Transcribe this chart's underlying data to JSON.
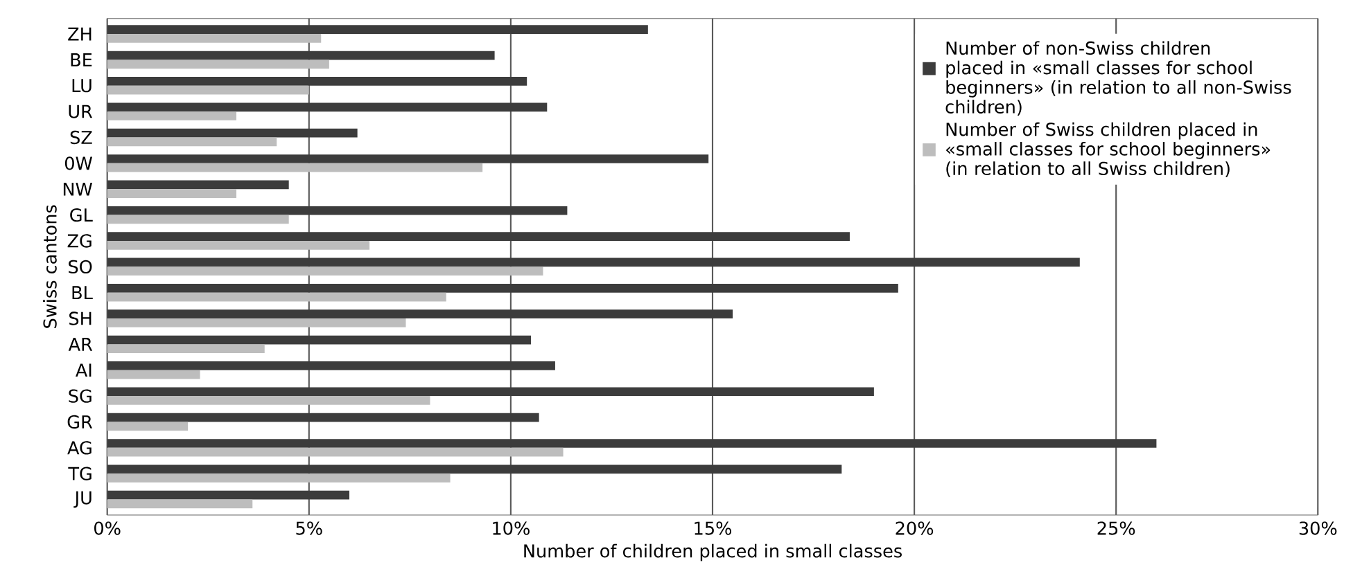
{
  "chart_data": {
    "type": "bar",
    "orientation": "horizontal",
    "xlabel": "Number of children placed in small classes",
    "ylabel": "Swiss cantons",
    "categories": [
      "ZH",
      "BE",
      "LU",
      "UR",
      "SZ",
      "0W",
      "NW",
      "GL",
      "ZG",
      "SO",
      "BL",
      "SH",
      "AR",
      "AI",
      "SG",
      "GR",
      "AG",
      "TG",
      "JU"
    ],
    "series": [
      {
        "name": "Number of non-Swiss children placed in «small classes for school beginners» (in relation to all non-Swiss children)",
        "color": "#3c3c3c",
        "values": [
          13.4,
          9.6,
          10.4,
          10.9,
          6.2,
          14.9,
          4.5,
          11.4,
          18.4,
          24.1,
          19.6,
          15.5,
          10.5,
          11.1,
          19.0,
          10.7,
          26.0,
          18.2,
          6.0
        ]
      },
      {
        "name": "Number of Swiss children placed in «small classes for school beginners» (in relation to all Swiss children)",
        "color": "#bdbdbd",
        "values": [
          5.3,
          5.5,
          5.0,
          3.2,
          4.2,
          9.3,
          3.2,
          4.5,
          6.5,
          10.8,
          8.4,
          7.4,
          3.9,
          2.3,
          8.0,
          2.0,
          11.3,
          8.5,
          3.6
        ]
      }
    ],
    "xlim": [
      0,
      30
    ],
    "xticks": [
      {
        "value": 0,
        "label": "0%"
      },
      {
        "value": 5,
        "label": "5%"
      },
      {
        "value": 10,
        "label": "10%"
      },
      {
        "value": 15,
        "label": "15%"
      },
      {
        "value": 20,
        "label": "20%"
      },
      {
        "value": 25,
        "label": "25%"
      },
      {
        "value": 30,
        "label": "30%"
      }
    ],
    "grid": "x",
    "legend": "top right"
  }
}
